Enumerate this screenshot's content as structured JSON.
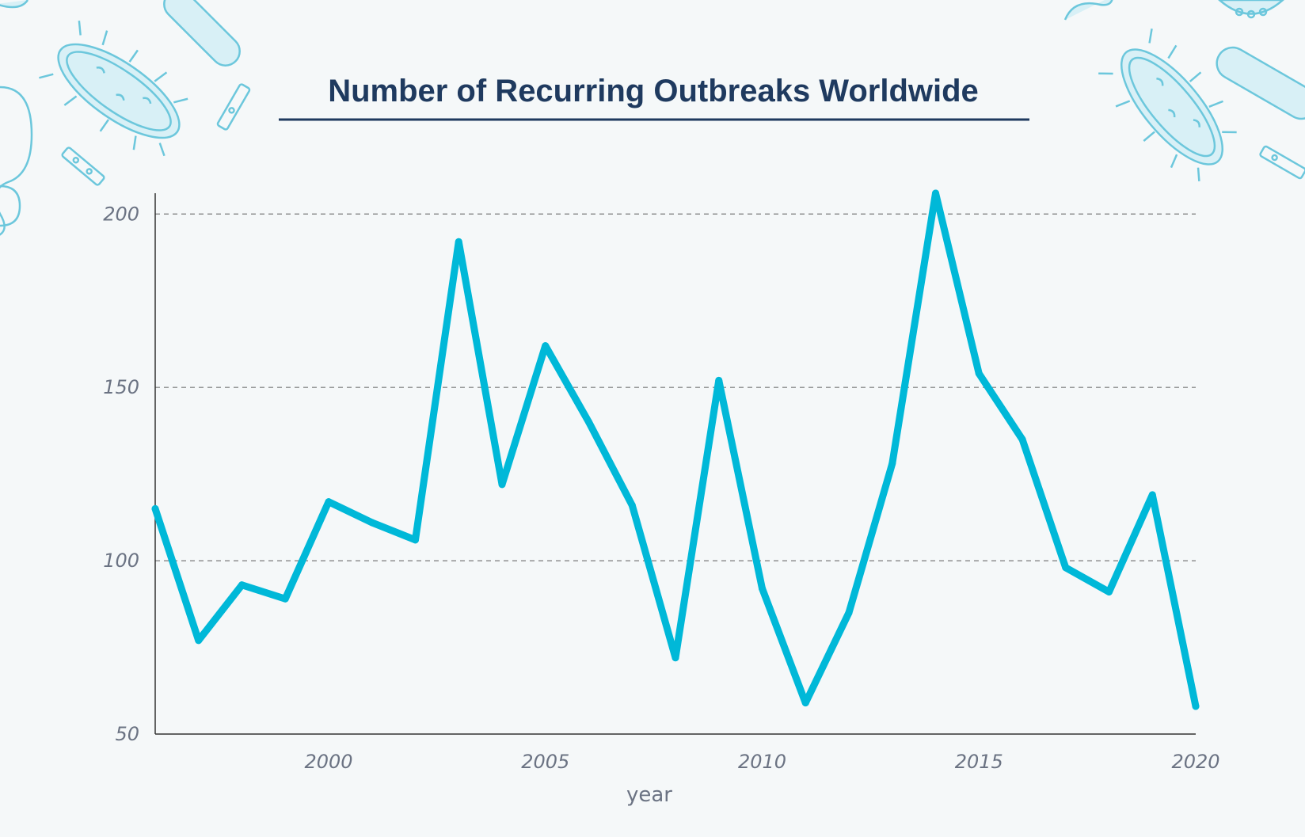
{
  "colors": {
    "background": "#f5f8f9",
    "line": "#00b8d8",
    "title": "#1f3a5f",
    "grid": "#7a7a7a",
    "tick": "#6b7383",
    "decoration": "#6cc7dc"
  },
  "decorations": [
    "bacteria-icon",
    "virus-icon",
    "pill-icon"
  ],
  "chart_data": {
    "type": "line",
    "title": "Number of Recurring Outbreaks Worldwide",
    "xlabel": "year",
    "ylabel": "",
    "x": [
      1996,
      1997,
      1998,
      1999,
      2000,
      2001,
      2002,
      2003,
      2004,
      2005,
      2006,
      2007,
      2008,
      2009,
      2010,
      2011,
      2012,
      2013,
      2014,
      2015,
      2016,
      2017,
      2018,
      2019,
      2020
    ],
    "series": [
      {
        "name": "Recurring outbreaks",
        "values": [
          115,
          77,
          93,
          89,
          117,
          111,
          106,
          192,
          122,
          162,
          140,
          116,
          72,
          152,
          92,
          59,
          85,
          128,
          206,
          154,
          135,
          98,
          91,
          119,
          58
        ]
      }
    ],
    "xlim": [
      1996,
      2020
    ],
    "ylim": [
      50,
      206
    ],
    "xticks": [
      "2000",
      "2005",
      "2010",
      "2015",
      "2020"
    ],
    "yticks": [
      "50",
      "100",
      "150",
      "200"
    ],
    "grid": "horizontal-dashed"
  }
}
